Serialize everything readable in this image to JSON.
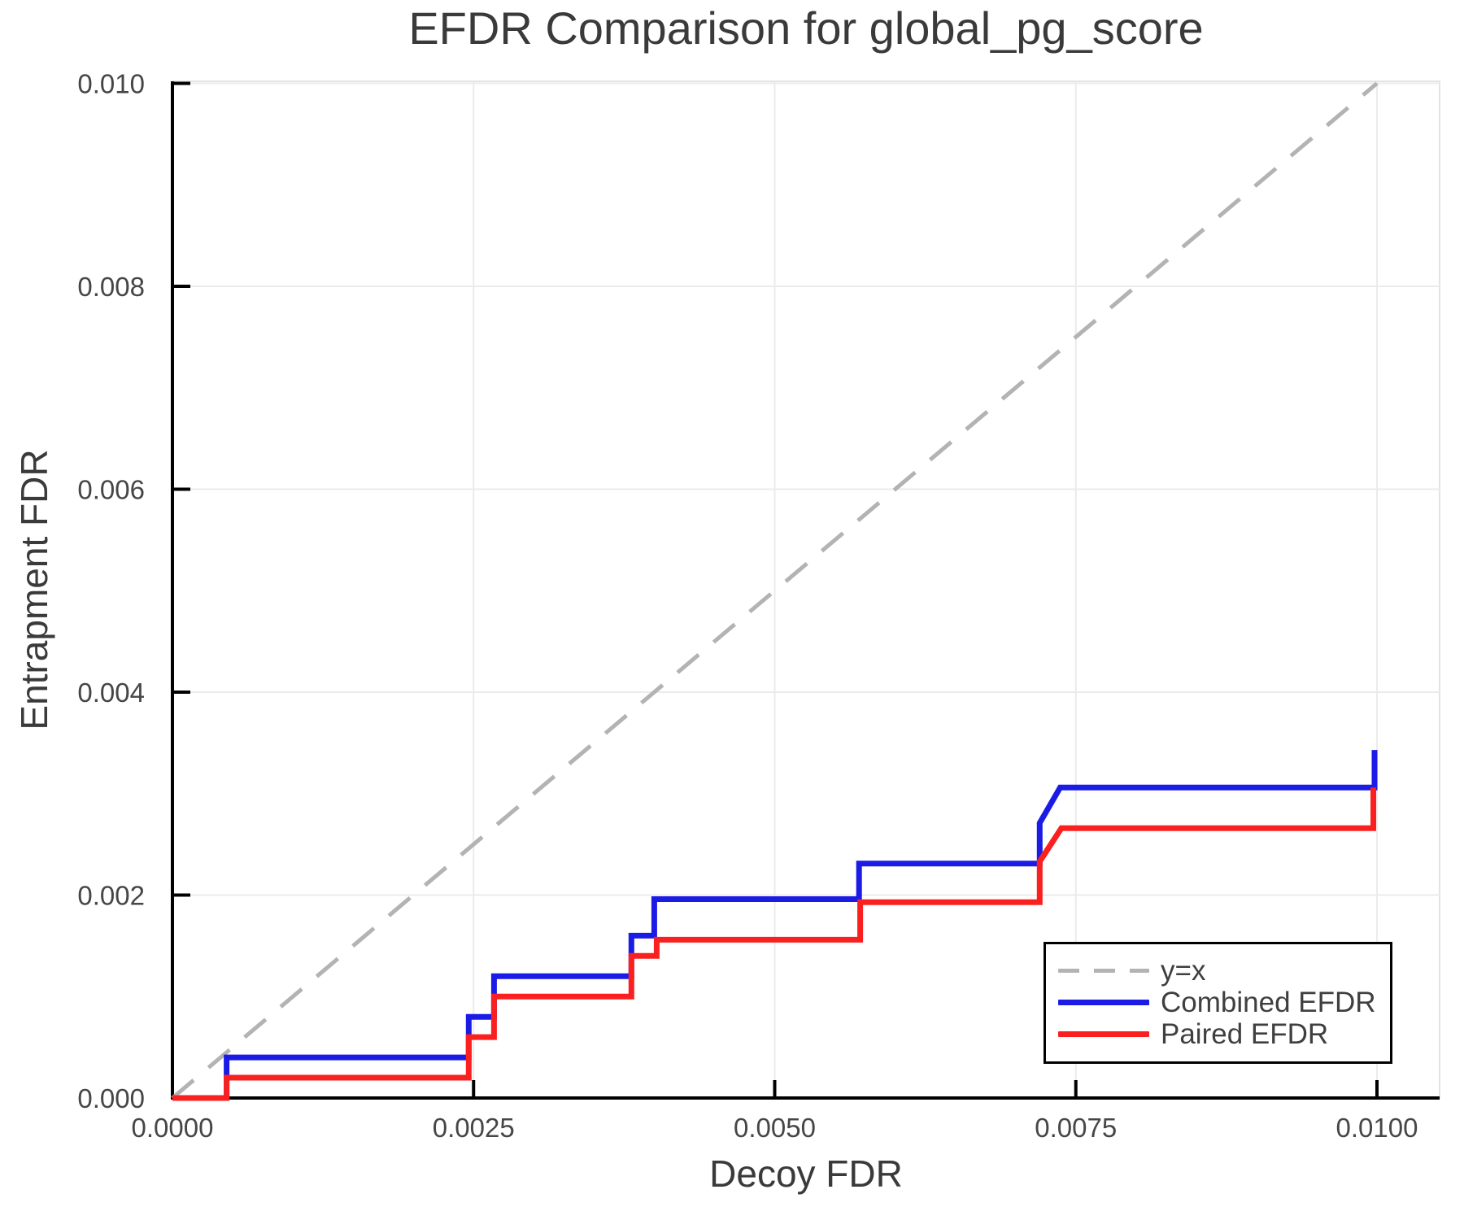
{
  "title": "EFDR Comparison for global_pg_score",
  "x_axis": {
    "label": "Decoy FDR",
    "tick_labels": [
      "0.0000",
      "0.0025",
      "0.0050",
      "0.0075",
      "0.0100"
    ]
  },
  "y_axis": {
    "label": "Entrapment FDR",
    "tick_labels": [
      "0.000",
      "0.002",
      "0.004",
      "0.006",
      "0.008",
      "0.010"
    ]
  },
  "legend": {
    "position": "lower right",
    "entries": [
      {
        "label": "y=x",
        "type": "dashed",
        "color": "#b3b3b3"
      },
      {
        "label": "Combined EFDR",
        "type": "solid",
        "color": "#1b1be6"
      },
      {
        "label": "Paired EFDR",
        "type": "solid",
        "color": "#fb2020"
      }
    ]
  },
  "colors": {
    "background": "#ffffff",
    "grid": "#ebebeb",
    "frame": "#e3e3e3",
    "spine": "#000000",
    "tick_text": "#464646",
    "title_text": "#3a3a3a"
  },
  "chart_data": {
    "type": "line",
    "title": "EFDR Comparison for global_pg_score",
    "xlabel": "Decoy FDR",
    "ylabel": "Entrapment FDR",
    "xlim": [
      0,
      0.01052
    ],
    "ylim": [
      0,
      0.01002
    ],
    "grid": true,
    "legend_position": "lower right",
    "x_ticks": {
      "values": [
        0,
        0.0025,
        0.005,
        0.0075,
        0.01
      ],
      "labels": [
        "0.0000",
        "0.0025",
        "0.0050",
        "0.0075",
        "0.0100"
      ]
    },
    "y_ticks": {
      "values": [
        0,
        0.002,
        0.004,
        0.006,
        0.008,
        0.01
      ],
      "labels": [
        "0.000",
        "0.002",
        "0.004",
        "0.006",
        "0.008",
        "0.010"
      ]
    },
    "reference_line": {
      "name": "y=x",
      "from": [
        0,
        0
      ],
      "to": [
        0.01,
        0.01
      ],
      "style": "dashed",
      "color": "#b3b3b3"
    },
    "series": [
      {
        "name": "Combined EFDR",
        "color": "#1b1be6",
        "points": [
          [
            0.0,
            0.0
          ],
          [
            0.00045,
            0.0
          ],
          [
            0.00045,
            0.0004
          ],
          [
            0.00246,
            0.0004
          ],
          [
            0.00246,
            0.0008
          ],
          [
            0.00267,
            0.0008
          ],
          [
            0.00267,
            0.0012
          ],
          [
            0.00381,
            0.0012
          ],
          [
            0.00381,
            0.0016
          ],
          [
            0.004,
            0.0016
          ],
          [
            0.004,
            0.00196
          ],
          [
            0.0057,
            0.00196
          ],
          [
            0.0057,
            0.00231
          ],
          [
            0.0072,
            0.00231
          ],
          [
            0.0072,
            0.00271
          ],
          [
            0.00737,
            0.00306
          ],
          [
            0.00998,
            0.00306
          ],
          [
            0.00998,
            0.00343
          ]
        ]
      },
      {
        "name": "Paired EFDR",
        "color": "#fb2020",
        "points": [
          [
            0.0,
            0.0
          ],
          [
            0.00045,
            0.0
          ],
          [
            0.00045,
            0.0002
          ],
          [
            0.00246,
            0.0002
          ],
          [
            0.00246,
            0.0006
          ],
          [
            0.00267,
            0.0006
          ],
          [
            0.00267,
            0.001
          ],
          [
            0.00381,
            0.001
          ],
          [
            0.00381,
            0.0014
          ],
          [
            0.00402,
            0.0014
          ],
          [
            0.00402,
            0.00156
          ],
          [
            0.00571,
            0.00156
          ],
          [
            0.00571,
            0.00193
          ],
          [
            0.0072,
            0.00193
          ],
          [
            0.0072,
            0.00233
          ],
          [
            0.00738,
            0.00266
          ],
          [
            0.00997,
            0.00266
          ],
          [
            0.00997,
            0.00306
          ]
        ]
      }
    ]
  }
}
